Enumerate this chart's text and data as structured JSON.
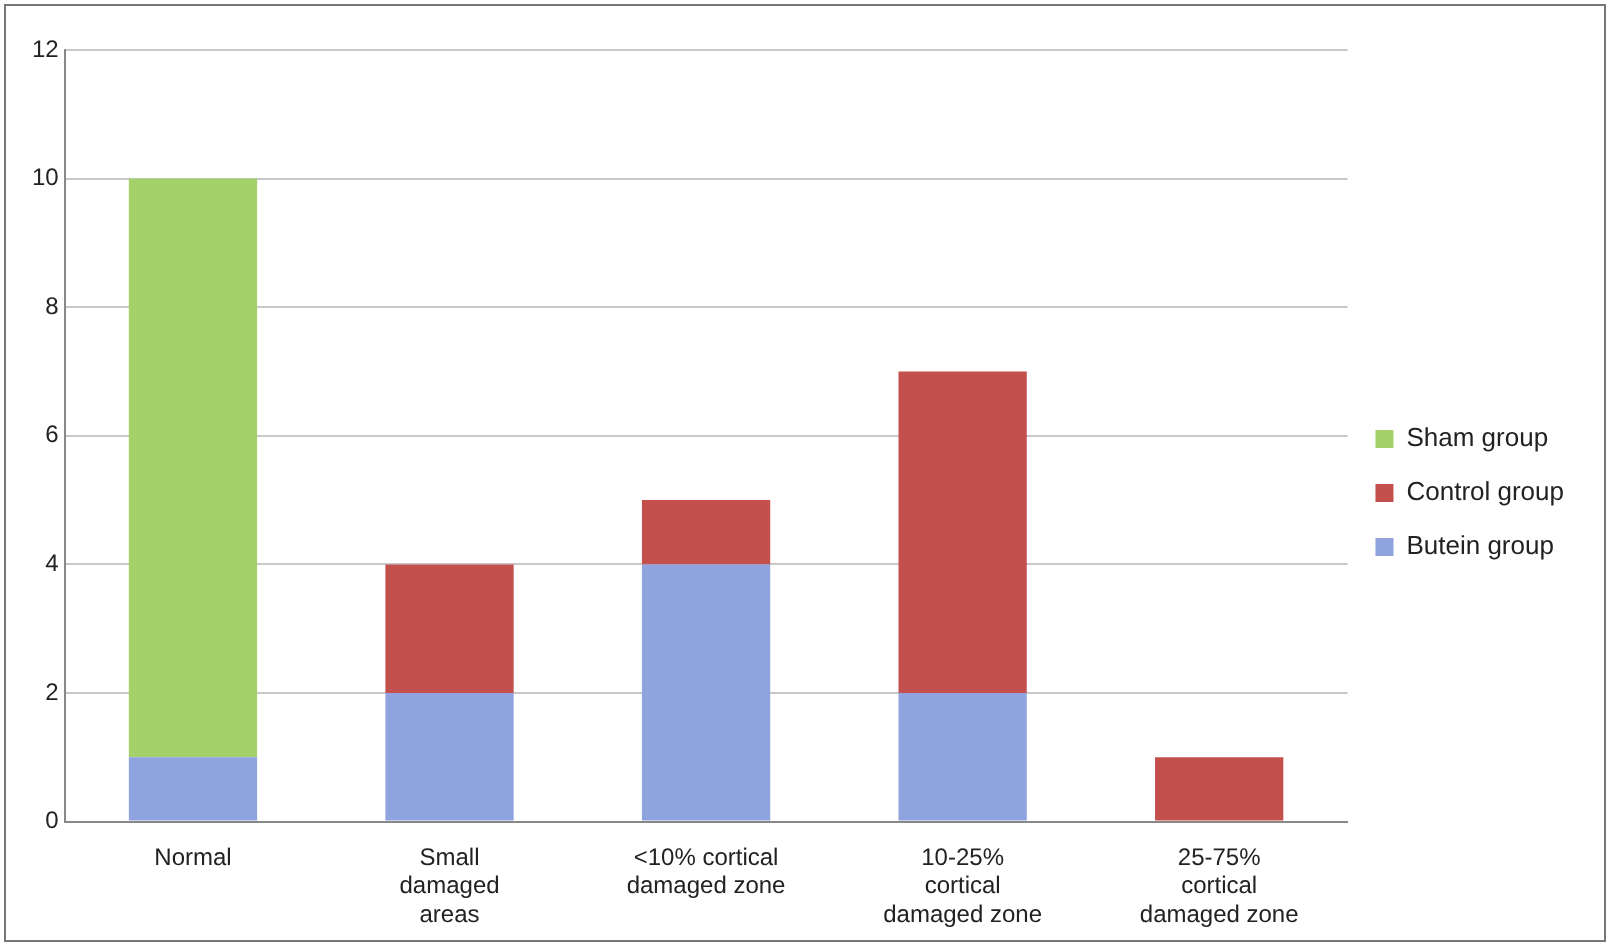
{
  "chart_data": {
    "type": "bar",
    "stacked": true,
    "categories": [
      "Normal",
      "Small damaged areas",
      "<10% cortical damaged zone",
      "10-25% cortical damaged zone",
      "25-75% cortical damaged zone"
    ],
    "series": [
      {
        "name": "Butein group",
        "color": "#8fa3de",
        "values": [
          1,
          2,
          4,
          2,
          0
        ]
      },
      {
        "name": "Control group",
        "color": "#c4504d",
        "values": [
          0,
          2,
          1,
          5,
          1
        ]
      },
      {
        "name": "Sham group",
        "color": "#a5d16b",
        "values": [
          9,
          0,
          0,
          0,
          0
        ]
      }
    ],
    "ylim": [
      0,
      12
    ],
    "yticks": [
      0,
      2,
      4,
      6,
      8,
      10,
      12
    ],
    "grid": "y",
    "legend": "right"
  }
}
